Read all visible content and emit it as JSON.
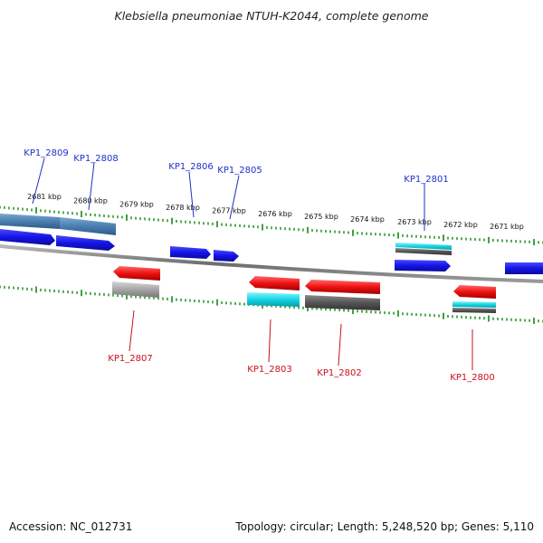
{
  "title": "Klebsiella pneumoniae NTUH-K2044, complete genome",
  "footer": {
    "accession": "Accession: NC_012731",
    "summary": "Topology: circular; Length: 5,248,520 bp; Genes: 5,110"
  },
  "colors": {
    "forward_cds": "#1414e6",
    "reverse_cds": "#ee1111",
    "gene_fwd_track": "#4a7fb0",
    "cyan": "#13d6e6",
    "gray": "#9a9a9a",
    "dark": "#555555",
    "tick": "#118811",
    "backbone": "#6e6e6e",
    "label_fwd": "#1f2fc8",
    "label_rev": "#c8101a"
  },
  "kbp_labels": [
    "2681 kbp",
    "2680 kbp",
    "2679 kbp",
    "2678 kbp",
    "2677 kbp",
    "2676 kbp",
    "2675 kbp",
    "2674 kbp",
    "2673 kbp",
    "2672 kbp",
    "2671 kbp"
  ],
  "genes": {
    "KP1_2809": "KP1_2809",
    "KP1_2808": "KP1_2808",
    "KP1_2807": "KP1_2807",
    "KP1_2806": "KP1_2806",
    "KP1_2805": "KP1_2805",
    "KP1_2803": "KP1_2803",
    "KP1_2802": "KP1_2802",
    "KP1_2801": "KP1_2801",
    "KP1_2800": "KP1_2800"
  }
}
